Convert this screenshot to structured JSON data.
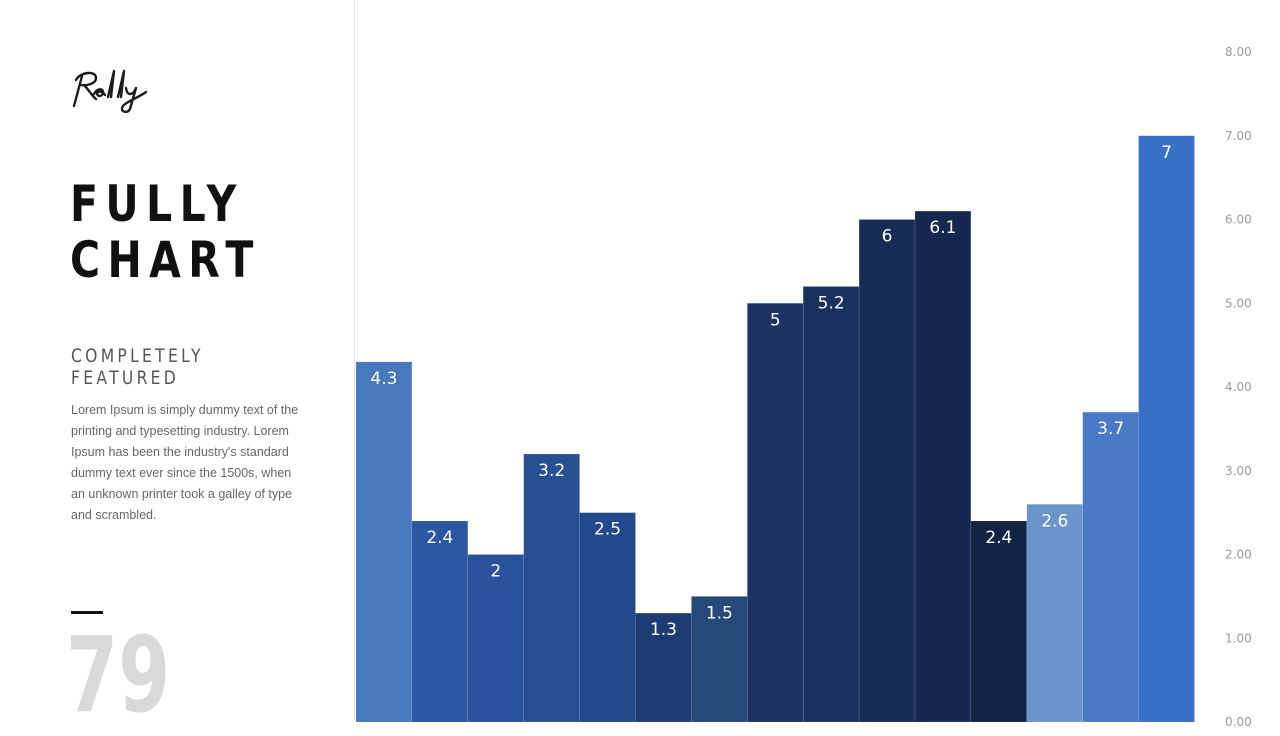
{
  "logo": {
    "text": "Rally"
  },
  "title": {
    "line1": "FULLY",
    "line2": "CHART"
  },
  "subtitle": {
    "line1": "COMPLETELY",
    "line2": "FEATURED"
  },
  "body_text": "Lorem Ipsum is simply dummy text of the printing and typesetting industry. Lorem Ipsum has been the industry's standard dummy text ever since the 1500s, when an unknown printer took a galley of type and scrambled.",
  "page_number": "79",
  "chart_data": {
    "type": "bar",
    "title": "",
    "xlabel": "",
    "ylabel": "",
    "ylim": [
      0,
      8
    ],
    "legend": "none",
    "grid": false,
    "values": [
      4.3,
      2.4,
      2,
      3.2,
      2.5,
      1.3,
      1.5,
      5,
      5.2,
      6,
      6.1,
      2.4,
      2.6,
      3.7,
      7
    ],
    "value_labels": [
      "4.3",
      "2.4",
      "2",
      "3.2",
      "2.5",
      "1.3",
      "1.5",
      "5",
      "5.2",
      "6",
      "6.1",
      "2.4",
      "2.6",
      "3.7",
      "7"
    ],
    "bar_colors": [
      "#4879be",
      "#2b56a1",
      "#2a529c",
      "#284f91",
      "#24498a",
      "#1d3c74",
      "#264a78",
      "#1b3463",
      "#1a3160",
      "#172c57",
      "#142850",
      "#122444",
      "#6b94cb",
      "#4a79c6",
      "#3870c8"
    ],
    "y_ticks": [
      0,
      1,
      2,
      3,
      4,
      5,
      6,
      7,
      8
    ],
    "y_tick_labels": [
      "0.00",
      "1.00",
      "2.00",
      "3.00",
      "4.00",
      "5.00",
      "6.00",
      "7.00",
      "8.00"
    ],
    "y_axis_position": "right"
  }
}
